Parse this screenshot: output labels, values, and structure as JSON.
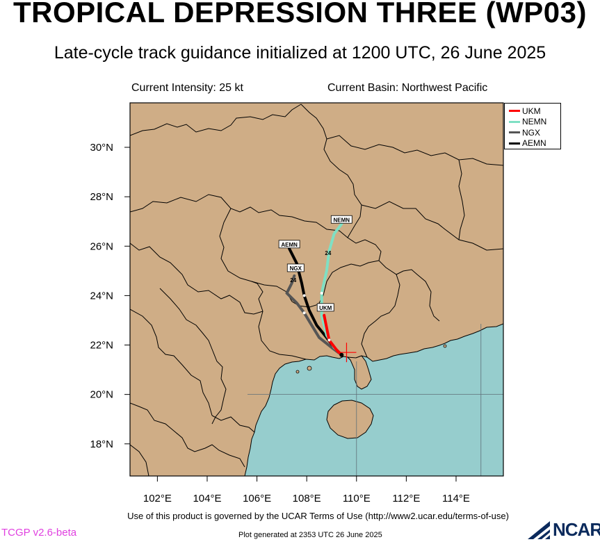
{
  "header": {
    "title": "TROPICAL DEPRESSION THREE (WP03)",
    "subtitle": "Late-cycle track guidance initialized at 1200 UTC, 26 June 2025",
    "current_intensity": "Current Intensity: 25 kt",
    "current_basin": "Current Basin: Northwest Pacific"
  },
  "map": {
    "lon_range": [
      100.9,
      115.9
    ],
    "lat_range": [
      16.7,
      31.8
    ],
    "land_color": "#cfad86",
    "ocean_color": "#96cdcd",
    "border_color": "#000000",
    "lon_ticks": [
      "102°E",
      "104°E",
      "106°E",
      "108°E",
      "110°E",
      "112°E",
      "114°E"
    ],
    "lat_ticks": [
      "18°N",
      "20°N",
      "22°N",
      "24°N",
      "26°N",
      "28°N",
      "30°N"
    ],
    "current_position": {
      "lon": 109.6,
      "lat": 21.7
    },
    "grid_lines": {
      "lon": [
        110,
        115
      ],
      "lat": [
        20
      ]
    }
  },
  "legend": {
    "items": [
      {
        "label": "UKM",
        "color": "#ff0000"
      },
      {
        "label": "NEMN",
        "color": "#7fe0c4"
      },
      {
        "label": "NGX",
        "color": "#555555"
      },
      {
        "label": "AEMN",
        "color": "#000000"
      }
    ]
  },
  "tracks": [
    {
      "model": "UKM",
      "color": "#ff0000",
      "tag": "UKM",
      "points": [
        [
          109.4,
          21.6
        ],
        [
          109.2,
          21.8
        ],
        [
          108.9,
          22.2
        ],
        [
          108.8,
          22.7
        ],
        [
          108.7,
          23.2
        ]
      ]
    },
    {
      "model": "NEMN",
      "color": "#7fe0c4",
      "tag": "NEMN",
      "points": [
        [
          109.4,
          21.6
        ],
        [
          109.1,
          21.9
        ],
        [
          108.8,
          22.4
        ],
        [
          108.6,
          23.2
        ],
        [
          108.6,
          24.1
        ],
        [
          108.8,
          25.0
        ],
        [
          108.9,
          25.8
        ],
        [
          109.1,
          26.5
        ],
        [
          109.4,
          26.9
        ]
      ]
    },
    {
      "model": "NGX",
      "color": "#555555",
      "tag": "NGX",
      "points": [
        [
          109.4,
          21.6
        ],
        [
          109.0,
          21.9
        ],
        [
          108.5,
          22.3
        ],
        [
          108.2,
          22.8
        ],
        [
          107.9,
          23.3
        ],
        [
          107.6,
          23.7
        ],
        [
          107.2,
          24.1
        ],
        [
          107.4,
          24.5
        ],
        [
          107.5,
          24.8
        ]
      ]
    },
    {
      "model": "AEMN",
      "color": "#000000",
      "tag": "AEMN",
      "points": [
        [
          109.4,
          21.6
        ],
        [
          109.1,
          21.9
        ],
        [
          108.8,
          22.3
        ],
        [
          108.4,
          22.8
        ],
        [
          108.1,
          23.4
        ],
        [
          107.9,
          24.0
        ],
        [
          107.8,
          24.5
        ],
        [
          107.7,
          24.9
        ],
        [
          107.6,
          25.3
        ],
        [
          107.3,
          25.9
        ]
      ]
    }
  ],
  "tag_numbers": [
    "24",
    "24"
  ],
  "footer": {
    "terms": "Use of this product is governed by the UCAR Terms of Use (http://www2.ucar.edu/terms-of-use)",
    "version": "TCGP v2.6-beta",
    "generated": "Plot generated at 2353 UTC   26 June 2025",
    "logo": "NCAR"
  }
}
